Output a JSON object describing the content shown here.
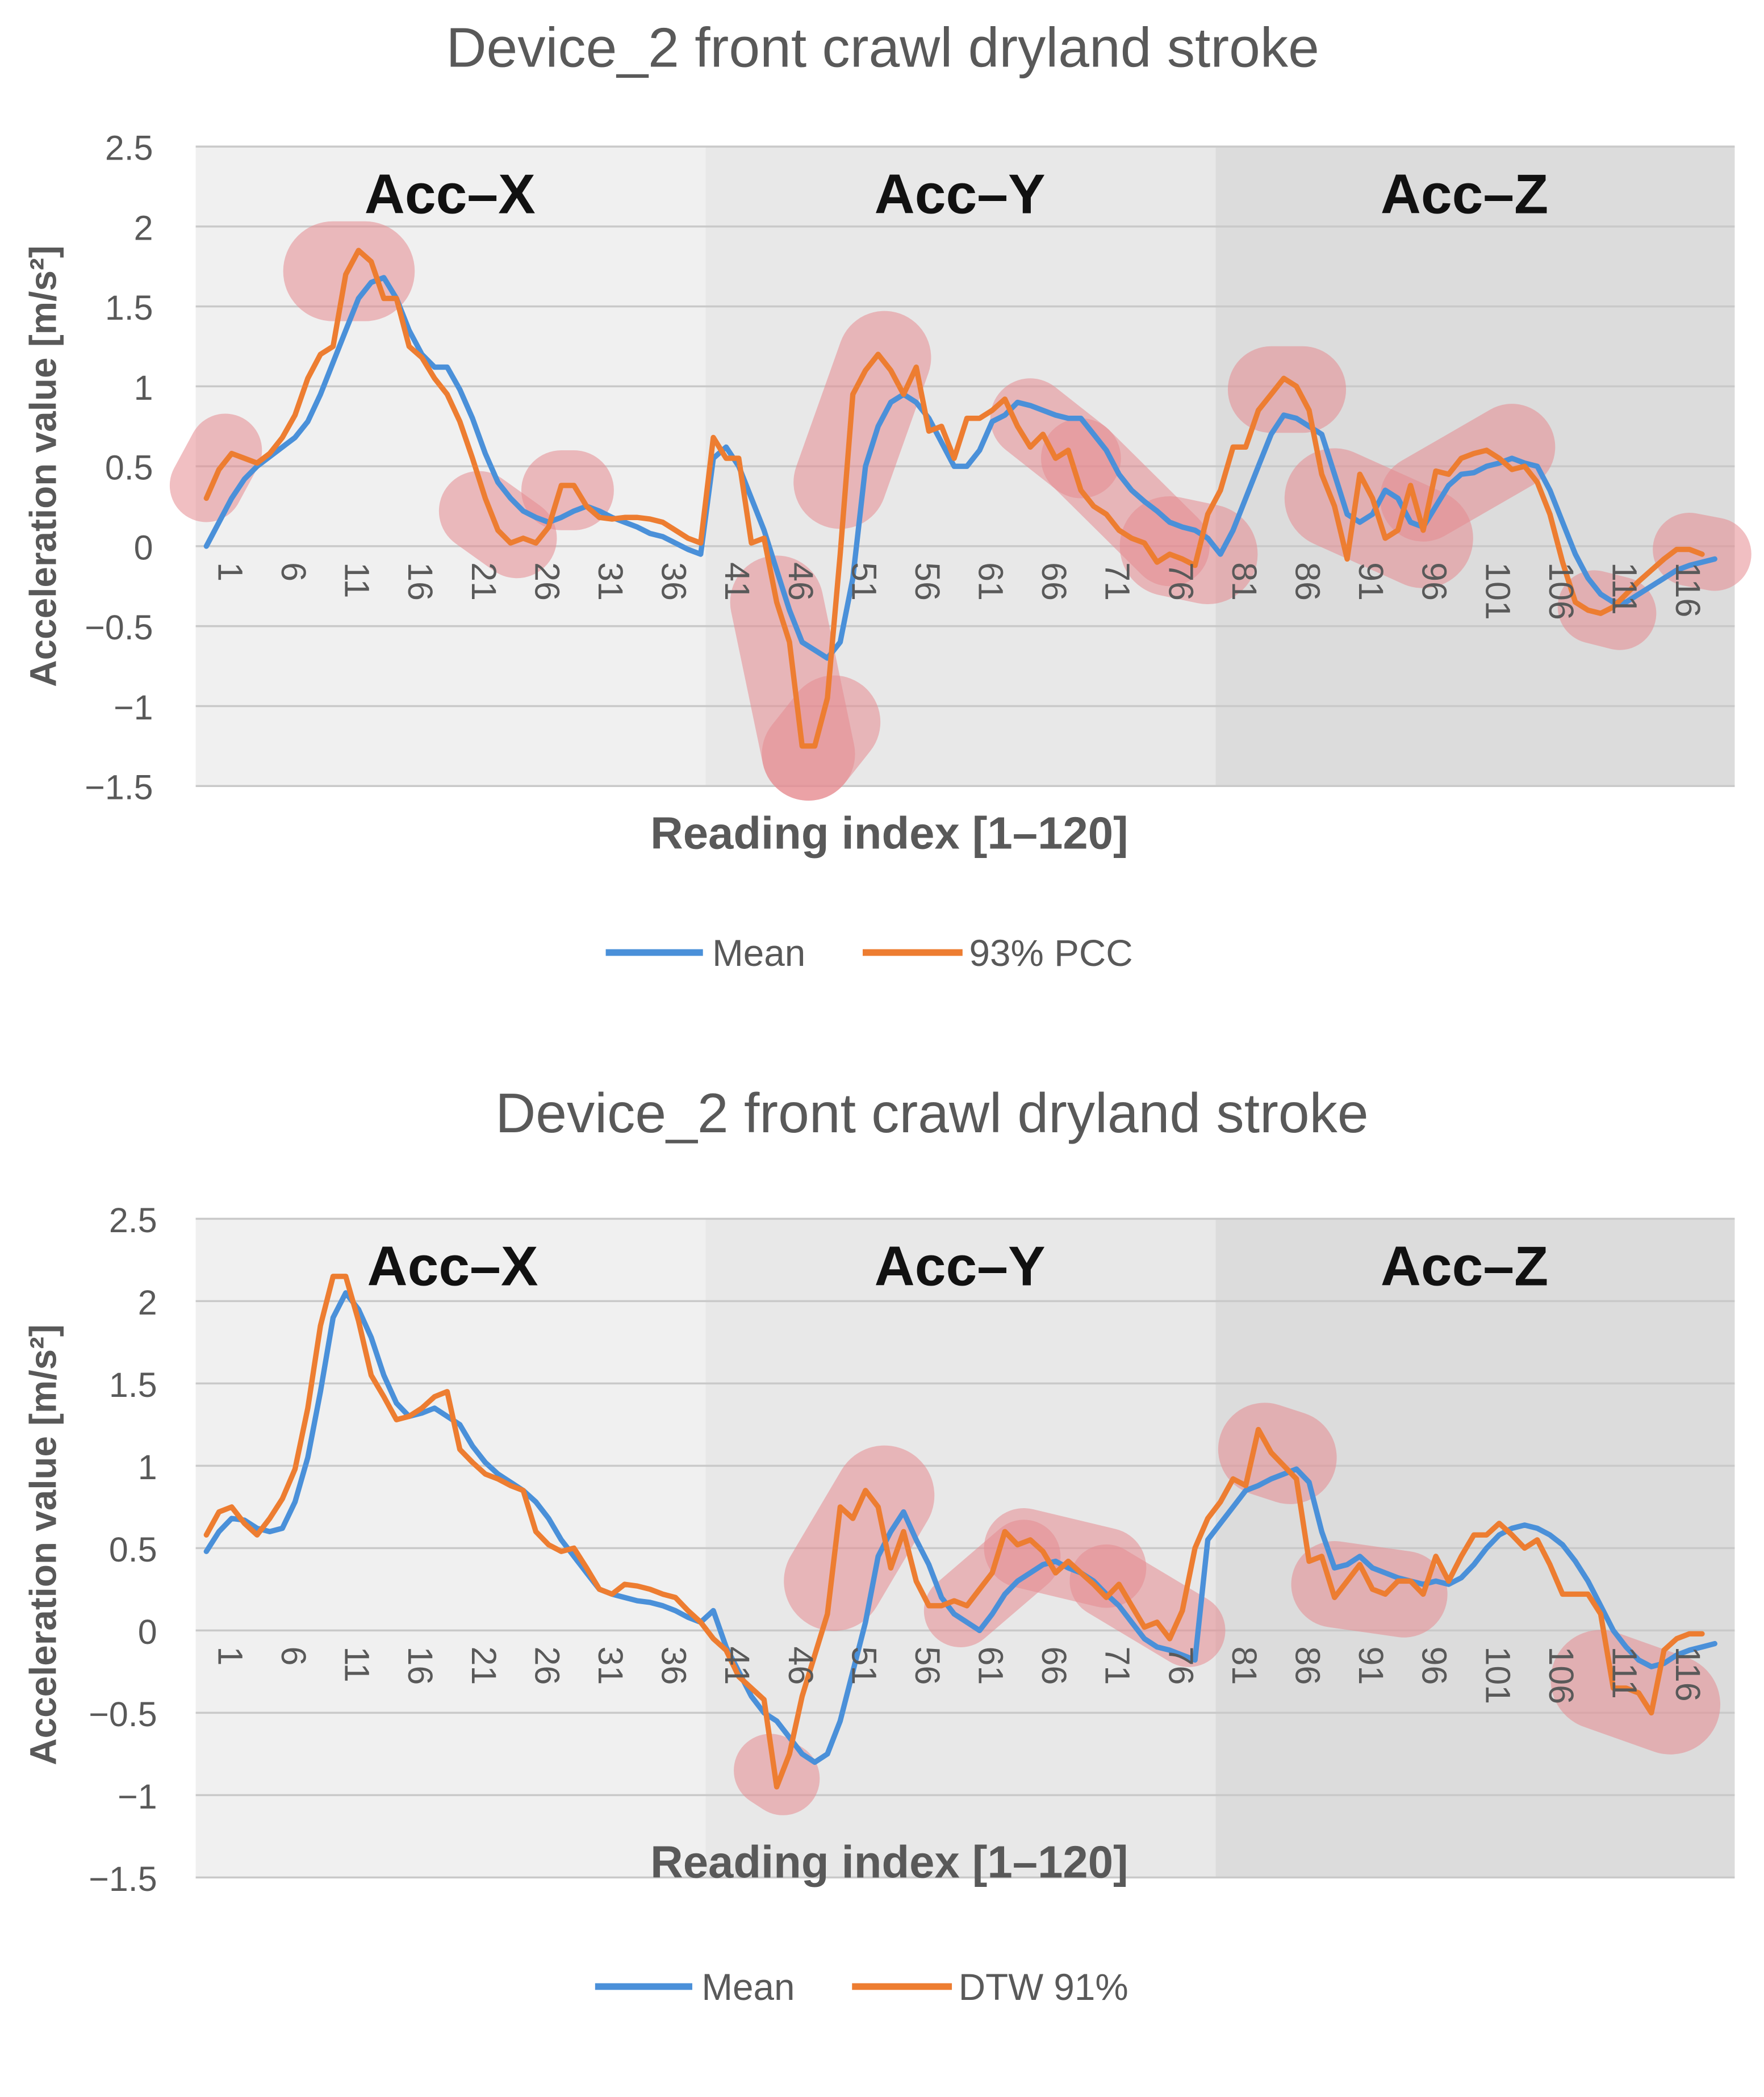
{
  "chart_data": [
    {
      "type": "line",
      "title": "Device_2 front crawl dryland stroke",
      "xlabel": "Reading index [1–120]",
      "ylabel": "Acceleration value [m/s²]",
      "ylim": [
        -1.5,
        2.5
      ],
      "yticks": [
        2.5,
        2,
        1.5,
        1,
        0.5,
        0,
        -0.5,
        -1,
        -1.5
      ],
      "ytick_labels": [
        "2.5",
        "2",
        "1.5",
        "1",
        "0.5",
        "0",
        "−0.5",
        "−1",
        "−1.5"
      ],
      "xticks": [
        "1",
        "6",
        "11",
        "16",
        "21",
        "26",
        "31",
        "36",
        "41",
        "46",
        "51",
        "56",
        "61",
        "66",
        "71",
        "76",
        "81",
        "86",
        "91",
        "96",
        "101",
        "106",
        "111",
        "116"
      ],
      "grid": true,
      "legend": "bottom",
      "colors": {
        "Mean": "#4a90d9",
        "93% PCC": "#ed7d31",
        "highlight": "#e58a8f",
        "band_x": "#f0f0f0",
        "band_y": "#e8e8e8",
        "band_z": "#dcdcdc"
      },
      "segments": [
        {
          "label": "Acc–X",
          "start": 1,
          "end": 40
        },
        {
          "label": "Acc–Y",
          "start": 41,
          "end": 80
        },
        {
          "label": "Acc–Z",
          "start": 81,
          "end": 120
        }
      ],
      "series": [
        {
          "name": "Mean",
          "values": [
            0,
            0.15,
            0.3,
            0.42,
            0.5,
            0.56,
            0.62,
            0.68,
            0.78,
            0.95,
            1.15,
            1.35,
            1.55,
            1.65,
            1.68,
            1.55,
            1.35,
            1.2,
            1.12,
            1.12,
            0.98,
            0.8,
            0.58,
            0.4,
            0.3,
            0.22,
            0.18,
            0.15,
            0.18,
            0.22,
            0.25,
            0.22,
            0.18,
            0.15,
            0.12,
            0.08,
            0.06,
            0.02,
            -0.02,
            -0.05,
            0.55,
            0.62,
            0.5,
            0.3,
            0.1,
            -0.15,
            -0.4,
            -0.6,
            -0.65,
            -0.7,
            -0.6,
            -0.2,
            0.5,
            0.75,
            0.9,
            0.95,
            0.9,
            0.8,
            0.65,
            0.5,
            0.5,
            0.6,
            0.78,
            0.82,
            0.9,
            0.88,
            0.85,
            0.82,
            0.8,
            0.8,
            0.7,
            0.6,
            0.45,
            0.35,
            0.28,
            0.22,
            0.15,
            0.12,
            0.1,
            0.05,
            -0.05,
            0.1,
            0.3,
            0.5,
            0.7,
            0.82,
            0.8,
            0.75,
            0.7,
            0.45,
            0.2,
            0.15,
            0.2,
            0.35,
            0.3,
            0.15,
            0.12,
            0.25,
            0.38,
            0.45,
            0.46,
            0.5,
            0.52,
            0.55,
            0.52,
            0.5,
            0.35,
            0.15,
            -0.05,
            -0.2,
            -0.3,
            -0.35,
            -0.35,
            -0.3,
            -0.25,
            -0.2,
            -0.15,
            -0.12,
            -0.1,
            -0.08
          ]
        },
        {
          "name": "93% PCC",
          "values": [
            0.3,
            0.48,
            0.58,
            0.55,
            0.52,
            0.58,
            0.68,
            0.82,
            1.05,
            1.2,
            1.25,
            1.7,
            1.85,
            1.78,
            1.55,
            1.55,
            1.25,
            1.18,
            1.05,
            0.95,
            0.78,
            0.55,
            0.3,
            0.1,
            0.02,
            0.05,
            0.02,
            0.12,
            0.38,
            0.38,
            0.25,
            0.18,
            0.17,
            0.18,
            0.18,
            0.17,
            0.15,
            0.1,
            0.05,
            0.02,
            0.68,
            0.55,
            0.55,
            0.02,
            0.05,
            -0.35,
            -0.6,
            -1.25,
            -1.25,
            -0.95,
            -0.05,
            0.95,
            1.1,
            1.2,
            1.1,
            0.95,
            1.12,
            0.72,
            0.75,
            0.55,
            0.8,
            0.8,
            0.85,
            0.92,
            0.75,
            0.62,
            0.7,
            0.55,
            0.6,
            0.35,
            0.25,
            0.2,
            0.1,
            0.05,
            0.02,
            -0.1,
            -0.05,
            -0.08,
            -0.12,
            0.2,
            0.35,
            0.62,
            0.62,
            0.85,
            0.95,
            1.05,
            1.0,
            0.85,
            0.45,
            0.25,
            -0.08,
            0.45,
            0.3,
            0.05,
            0.1,
            0.38,
            0.1,
            0.47,
            0.45,
            0.55,
            0.58,
            0.6,
            0.55,
            0.48,
            0.5,
            0.4,
            0.2,
            -0.1,
            -0.35,
            -0.4,
            -0.42,
            -0.38,
            -0.3,
            -0.22,
            -0.15,
            -0.08,
            -0.02,
            -0.02,
            -0.05
          ]
        }
      ],
      "highlights": [
        {
          "x1": 1,
          "y1": 0.38,
          "x2": 2.5,
          "y2": 0.6,
          "w": 55
        },
        {
          "x1": 11,
          "y1": 1.72,
          "x2": 13.5,
          "y2": 1.72,
          "w": 75
        },
        {
          "x1": 22.5,
          "y1": 0.22,
          "x2": 25.5,
          "y2": 0.05,
          "w": 60
        },
        {
          "x1": 29,
          "y1": 0.35,
          "x2": 30,
          "y2": 0.35,
          "w": 60
        },
        {
          "x1": 46,
          "y1": -0.35,
          "x2": 48.5,
          "y2": -1.3,
          "w": 70
        },
        {
          "x1": 48.5,
          "y1": -1.3,
          "x2": 50.5,
          "y2": -1.1,
          "w": 70
        },
        {
          "x1": 51,
          "y1": 0.4,
          "x2": 54.5,
          "y2": 1.18,
          "w": 70
        },
        {
          "x1": 66,
          "y1": 0.8,
          "x2": 70,
          "y2": 0.55,
          "w": 60
        },
        {
          "x1": 70,
          "y1": 0.55,
          "x2": 77,
          "y2": 0.0,
          "w": 60
        },
        {
          "x1": 77,
          "y1": 0.0,
          "x2": 80,
          "y2": -0.05,
          "w": 75
        },
        {
          "x1": 85,
          "y1": 0.98,
          "x2": 87.5,
          "y2": 0.98,
          "w": 65
        },
        {
          "x1": 90,
          "y1": 0.3,
          "x2": 97,
          "y2": 0.05,
          "w": 75
        },
        {
          "x1": 97,
          "y1": 0.3,
          "x2": 104,
          "y2": 0.62,
          "w": 65
        },
        {
          "x1": 110.5,
          "y1": -0.38,
          "x2": 112.5,
          "y2": -0.42,
          "w": 55
        },
        {
          "x1": 118,
          "y1": -0.02,
          "x2": 120,
          "y2": -0.05,
          "w": 55
        }
      ]
    },
    {
      "type": "line",
      "title": "Device_2 front crawl dryland stroke",
      "xlabel": "Reading index [1–120]",
      "ylabel": "Acceleration value [m/s²]",
      "ylim": [
        -1.5,
        2.5
      ],
      "yticks": [
        2.5,
        2,
        1.5,
        1,
        0.5,
        0,
        -0.5,
        -1,
        -1.5
      ],
      "ytick_labels": [
        "2.5",
        "2",
        "1.5",
        "1",
        "0.5",
        "0",
        "−0.5",
        "−1",
        "−1.5"
      ],
      "xticks": [
        "1",
        "6",
        "11",
        "16",
        "21",
        "26",
        "31",
        "36",
        "41",
        "46",
        "51",
        "56",
        "61",
        "66",
        "71",
        "76",
        "81",
        "86",
        "91",
        "96",
        "101",
        "106",
        "111",
        "116"
      ],
      "grid": true,
      "legend": "bottom",
      "colors": {
        "Mean": "#4a90d9",
        "DTW 91%": "#ed7d31",
        "highlight": "#e58a8f",
        "band_x": "#f0f0f0",
        "band_y": "#e8e8e8",
        "band_z": "#dcdcdc"
      },
      "segments": [
        {
          "label": "Acc–X",
          "start": 1,
          "end": 40
        },
        {
          "label": "Acc–Y",
          "start": 41,
          "end": 80
        },
        {
          "label": "Acc–Z",
          "start": 81,
          "end": 120
        }
      ],
      "series": [
        {
          "name": "Mean",
          "values": [
            0.48,
            0.6,
            0.68,
            0.67,
            0.62,
            0.6,
            0.62,
            0.78,
            1.05,
            1.45,
            1.9,
            2.05,
            1.95,
            1.78,
            1.55,
            1.38,
            1.3,
            1.32,
            1.35,
            1.3,
            1.25,
            1.12,
            1.02,
            0.95,
            0.9,
            0.85,
            0.78,
            0.68,
            0.55,
            0.45,
            0.35,
            0.25,
            0.22,
            0.2,
            0.18,
            0.17,
            0.15,
            0.12,
            0.08,
            0.05,
            0.12,
            -0.1,
            -0.25,
            -0.4,
            -0.5,
            -0.55,
            -0.65,
            -0.75,
            -0.8,
            -0.75,
            -0.55,
            -0.25,
            0.05,
            0.45,
            0.6,
            0.72,
            0.55,
            0.4,
            0.2,
            0.1,
            0.05,
            0.0,
            0.1,
            0.22,
            0.3,
            0.35,
            0.4,
            0.42,
            0.38,
            0.35,
            0.3,
            0.22,
            0.15,
            0.05,
            -0.05,
            -0.1,
            -0.12,
            -0.15,
            -0.18,
            0.55,
            0.65,
            0.75,
            0.85,
            0.88,
            0.92,
            0.95,
            0.98,
            0.9,
            0.6,
            0.38,
            0.4,
            0.45,
            0.38,
            0.35,
            0.32,
            0.3,
            0.28,
            0.3,
            0.28,
            0.32,
            0.4,
            0.5,
            0.58,
            0.62,
            0.64,
            0.62,
            0.58,
            0.52,
            0.42,
            0.3,
            0.15,
            0.0,
            -0.1,
            -0.18,
            -0.22,
            -0.2,
            -0.15,
            -0.12,
            -0.1,
            -0.08
          ]
        },
        {
          "name": "DTW 91%",
          "values": [
            0.58,
            0.72,
            0.75,
            0.65,
            0.58,
            0.68,
            0.8,
            0.98,
            1.35,
            1.85,
            2.15,
            2.15,
            1.88,
            1.55,
            1.42,
            1.28,
            1.3,
            1.35,
            1.42,
            1.45,
            1.1,
            1.02,
            0.95,
            0.92,
            0.88,
            0.85,
            0.6,
            0.52,
            0.48,
            0.5,
            0.38,
            0.25,
            0.22,
            0.28,
            0.27,
            0.25,
            0.22,
            0.2,
            0.12,
            0.05,
            -0.05,
            -0.12,
            -0.28,
            -0.35,
            -0.42,
            -0.95,
            -0.75,
            -0.4,
            -0.15,
            0.1,
            0.75,
            0.68,
            0.85,
            0.75,
            0.38,
            0.6,
            0.3,
            0.15,
            0.15,
            0.18,
            0.15,
            0.25,
            0.35,
            0.6,
            0.52,
            0.55,
            0.48,
            0.35,
            0.42,
            0.35,
            0.28,
            0.2,
            0.28,
            0.15,
            0.02,
            0.05,
            -0.05,
            0.12,
            0.5,
            0.68,
            0.78,
            0.92,
            0.88,
            1.22,
            1.08,
            1.0,
            0.92,
            0.42,
            0.45,
            0.2,
            0.3,
            0.4,
            0.25,
            0.22,
            0.3,
            0.3,
            0.22,
            0.45,
            0.3,
            0.45,
            0.58,
            0.58,
            0.65,
            0.58,
            0.5,
            0.55,
            0.4,
            0.22,
            0.22,
            0.22,
            0.1,
            -0.35,
            -0.35,
            -0.38,
            -0.5,
            -0.12,
            -0.05,
            -0.02,
            -0.02
          ]
        }
      ],
      "highlights": [
        {
          "x1": 50.5,
          "y1": 0.3,
          "x2": 54.5,
          "y2": 0.82,
          "w": 75
        },
        {
          "x1": 45.5,
          "y1": -0.85,
          "x2": 46.5,
          "y2": -0.9,
          "w": 55
        },
        {
          "x1": 60.5,
          "y1": 0.12,
          "x2": 65.5,
          "y2": 0.45,
          "w": 55
        },
        {
          "x1": 65.5,
          "y1": 0.5,
          "x2": 72,
          "y2": 0.38,
          "w": 60
        },
        {
          "x1": 72,
          "y1": 0.3,
          "x2": 78.5,
          "y2": 0.0,
          "w": 55
        },
        {
          "x1": 84.5,
          "y1": 1.1,
          "x2": 86.5,
          "y2": 1.05,
          "w": 70
        },
        {
          "x1": 90,
          "y1": 0.28,
          "x2": 95.5,
          "y2": 0.22,
          "w": 65
        },
        {
          "x1": 111,
          "y1": -0.3,
          "x2": 116.5,
          "y2": -0.45,
          "w": 75
        }
      ]
    }
  ]
}
